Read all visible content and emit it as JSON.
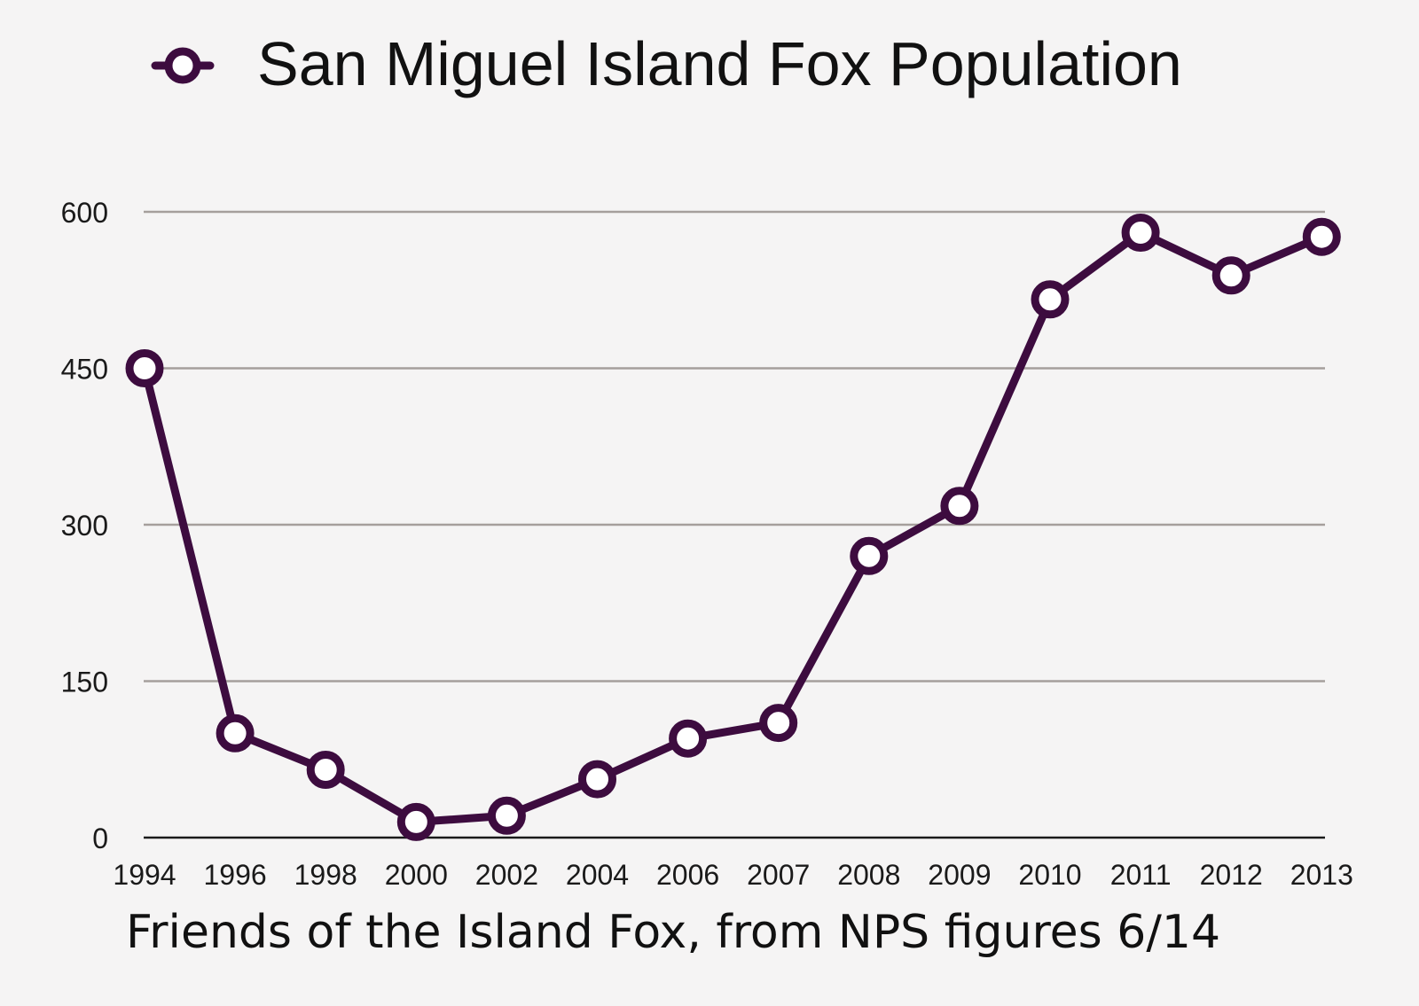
{
  "chart_data": {
    "type": "line",
    "title": "",
    "xlabel": "",
    "ylabel": "",
    "categories": [
      "1994",
      "1996",
      "1998",
      "2000",
      "2002",
      "2004",
      "2006",
      "2007",
      "2008",
      "2009",
      "2010",
      "2011",
      "2012",
      "2013"
    ],
    "series": [
      {
        "name": "San Miguel Island Fox Population",
        "values": [
          450,
          100,
          65,
          15,
          21,
          56,
          95,
          110,
          270,
          318,
          516,
          580,
          539,
          576
        ]
      }
    ],
    "yticks": [
      "0",
      "150",
      "300",
      "450",
      "600"
    ],
    "ylim": [
      0,
      600
    ],
    "grid": true,
    "legend_position": "top",
    "marker": "open-circle"
  },
  "caption": "Friends of the Island Fox, from NPS figures 6/14",
  "colors": {
    "series": "#3d0c3f",
    "grid": "#a59f9c",
    "background": "#f5f4f4",
    "marker_fill": "#ffffff"
  }
}
